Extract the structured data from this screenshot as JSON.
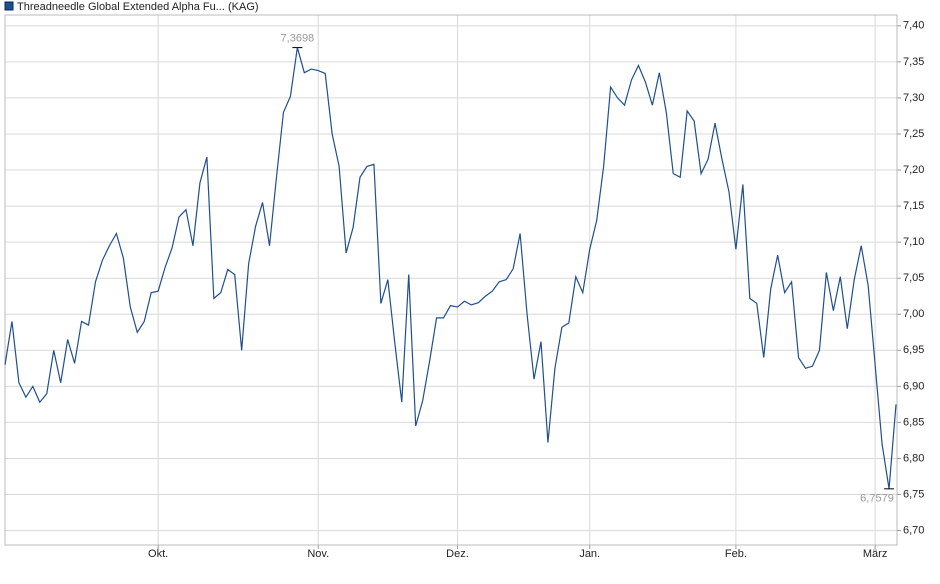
{
  "chart_data": {
    "type": "line",
    "series": [
      {
        "name": "Threadneedle Global Extended Alpha Fu... (KAG)",
        "color": "#1f4f8f",
        "values": [
          6.93,
          6.99,
          6.905,
          6.885,
          6.9,
          6.878,
          6.89,
          6.95,
          6.905,
          6.965,
          6.932,
          6.99,
          6.985,
          7.045,
          7.075,
          7.095,
          7.112,
          7.078,
          7.01,
          6.975,
          6.99,
          7.03,
          7.032,
          7.065,
          7.092,
          7.135,
          7.145,
          7.095,
          7.182,
          7.218,
          7.022,
          7.03,
          7.062,
          7.055,
          6.95,
          7.07,
          7.122,
          7.155,
          7.095,
          7.19,
          7.28,
          7.302,
          7.3698,
          7.335,
          7.34,
          7.338,
          7.334,
          7.25,
          7.205,
          7.085,
          7.12,
          7.19,
          7.205,
          7.208,
          7.015,
          7.048,
          6.96,
          6.878,
          7.055,
          6.845,
          6.88,
          6.935,
          6.995,
          6.995,
          7.012,
          7.01,
          7.018,
          7.013,
          7.016,
          7.025,
          7.032,
          7.045,
          7.048,
          7.063,
          7.112,
          7.0,
          6.91,
          6.962,
          6.822,
          6.925,
          6.982,
          6.988,
          7.052,
          7.03,
          7.09,
          7.13,
          7.205,
          7.315,
          7.3,
          7.29,
          7.325,
          7.345,
          7.322,
          7.29,
          7.335,
          7.28,
          7.195,
          7.19,
          7.282,
          7.268,
          7.195,
          7.215,
          7.265,
          7.215,
          7.17,
          7.09,
          7.18,
          7.022,
          7.015,
          6.94,
          7.035,
          7.082,
          7.03,
          7.045,
          6.94,
          6.925,
          6.928,
          6.95,
          7.058,
          7.005,
          7.052,
          6.98,
          7.048,
          7.095,
          7.04,
          6.93,
          6.82,
          6.7579,
          6.875
        ],
        "value_labels": [
          null,
          null,
          null,
          null,
          null,
          null,
          null,
          null,
          null,
          null,
          null,
          null,
          null,
          null,
          null,
          null,
          null,
          null,
          null,
          null,
          null,
          null,
          null,
          null,
          null,
          null,
          null,
          null,
          null,
          null,
          null,
          null,
          null,
          null,
          null,
          null,
          null,
          null,
          null,
          null,
          null,
          null,
          "7,3698",
          null,
          null,
          null,
          null,
          null,
          null,
          null,
          null,
          null,
          null,
          null,
          null,
          null,
          null,
          null,
          null,
          null,
          null,
          null,
          null,
          null,
          null,
          null,
          null,
          null,
          null,
          null,
          null,
          null,
          null,
          null,
          null,
          null,
          null,
          null,
          null,
          null,
          null,
          null,
          null,
          null,
          null,
          null,
          null,
          null,
          null,
          null,
          null,
          null,
          null,
          null,
          null,
          null,
          null,
          null,
          null,
          null,
          null,
          null,
          null,
          null,
          null,
          null,
          null,
          null,
          null,
          null,
          null,
          null,
          null,
          null,
          null,
          null,
          null,
          null,
          null,
          null,
          null,
          null,
          null,
          null,
          null,
          null,
          null,
          "6,7579",
          null
        ]
      }
    ],
    "categories": [
      null,
      null,
      null,
      null,
      null,
      null,
      null,
      null,
      null,
      null,
      null,
      null,
      null,
      null,
      null,
      null,
      null,
      null,
      null,
      null,
      null,
      null,
      "Okt.",
      null,
      null,
      null,
      null,
      null,
      null,
      null,
      null,
      null,
      null,
      null,
      null,
      null,
      null,
      null,
      null,
      null,
      null,
      null,
      null,
      null,
      null,
      "Nov.",
      null,
      null,
      null,
      null,
      null,
      null,
      null,
      null,
      null,
      null,
      null,
      null,
      null,
      null,
      null,
      null,
      null,
      null,
      null,
      "Dez.",
      null,
      null,
      null,
      null,
      null,
      null,
      null,
      null,
      null,
      null,
      null,
      null,
      null,
      null,
      null,
      null,
      null,
      null,
      "Jan.",
      null,
      null,
      null,
      null,
      null,
      null,
      null,
      null,
      null,
      null,
      null,
      null,
      null,
      null,
      null,
      null,
      null,
      null,
      null,
      null,
      "Feb.",
      null,
      null,
      null,
      null,
      null,
      null,
      null,
      null,
      null,
      null,
      null,
      null,
      null,
      null,
      null,
      null,
      null,
      null,
      null,
      "März",
      null,
      null,
      null
    ],
    "ylim": [
      6.68,
      7.415
    ],
    "yticks": [
      {
        "value": 6.7,
        "label": "6,70"
      },
      {
        "value": 6.75,
        "label": "6,75"
      },
      {
        "value": 6.8,
        "label": "6,80"
      },
      {
        "value": 6.85,
        "label": "6,85"
      },
      {
        "value": 6.9,
        "label": "6,90"
      },
      {
        "value": 6.95,
        "label": "6,95"
      },
      {
        "value": 7.0,
        "label": "7,00"
      },
      {
        "value": 7.05,
        "label": "7,05"
      },
      {
        "value": 7.1,
        "label": "7,10"
      },
      {
        "value": 7.15,
        "label": "7,15"
      },
      {
        "value": 7.2,
        "label": "7,20"
      },
      {
        "value": 7.25,
        "label": "7,25"
      },
      {
        "value": 7.3,
        "label": "7,30"
      },
      {
        "value": 7.35,
        "label": "7,35"
      },
      {
        "value": 7.4,
        "label": "7,40"
      }
    ],
    "grid": true,
    "legend": "top-left"
  }
}
